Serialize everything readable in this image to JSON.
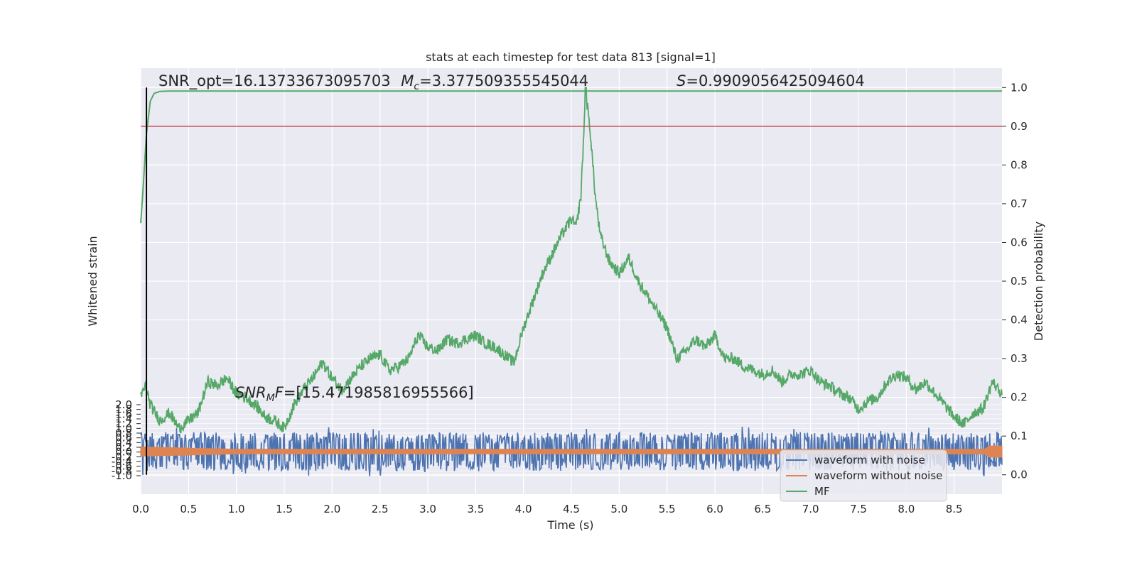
{
  "chart_data": {
    "type": "line",
    "title": "stats at each timestep for test data 813 [signal=1]",
    "xlabel": "Time (s)",
    "ylabel_left": "Whitened strain",
    "ylabel_right": "Detection probability",
    "xlim": [
      0.0,
      9.0
    ],
    "ylim_right": [
      -0.05,
      1.05
    ],
    "x_ticks": [
      "0.0",
      "0.5",
      "1.0",
      "1.5",
      "2.0",
      "2.5",
      "3.0",
      "3.5",
      "4.0",
      "4.5",
      "5.0",
      "5.5",
      "6.0",
      "6.5",
      "7.0",
      "7.5",
      "8.0",
      "8.5"
    ],
    "y_right_ticks": [
      "0.0",
      "0.1",
      "0.2",
      "0.3",
      "0.4",
      "0.5",
      "0.6",
      "0.7",
      "0.8",
      "0.9",
      "1.0"
    ],
    "y_left_ticks": [
      "2.0",
      "1.8",
      "1.6",
      "1.4",
      "1.2",
      "1.0",
      "0.8",
      "0.6",
      "0.4",
      "0.2",
      "0.0",
      "-0.2",
      "-0.4",
      "-0.6",
      "-0.8",
      "-1.0"
    ],
    "grid": true,
    "legend_position": "lower-right",
    "annotations": {
      "snr_opt": "SNR_opt=16.13733673095703",
      "mc_label": "M",
      "mc_sub": "c",
      "mc_value": "=3.377509355545044",
      "s_label": "S",
      "s_value": "=0.9909056425094604",
      "snr_mf_label": "SNR",
      "snr_mf_sub": "M",
      "snr_mf_tail": "F",
      "snr_mf_value": "=[15.471985816955566]"
    },
    "threshold": {
      "value": 0.9,
      "color": "#c44e52"
    },
    "vertical_marker_x": 0.06,
    "series": [
      {
        "name": "waveform with noise",
        "color": "#4c72b0",
        "kind": "noise",
        "amplitude_prob": 0.05
      },
      {
        "name": "waveform without noise",
        "color": "#dd8452",
        "kind": "signal",
        "amplitude_prob": 0.012
      },
      {
        "name": "MF",
        "color": "#55a868",
        "kind": "mf",
        "x": [
          0.0,
          0.02,
          0.06,
          0.1,
          0.14,
          0.2,
          0.3,
          9.0
        ],
        "y": [
          0.65,
          0.72,
          0.88,
          0.965,
          0.985,
          0.99,
          0.991,
          0.991
        ]
      },
      {
        "name": "",
        "color": "#55a868",
        "kind": "prob",
        "x": [
          0.0,
          0.05,
          0.1,
          0.2,
          0.3,
          0.4,
          0.5,
          0.6,
          0.7,
          0.8,
          0.9,
          1.0,
          1.1,
          1.2,
          1.3,
          1.4,
          1.5,
          1.6,
          1.7,
          1.8,
          1.9,
          2.0,
          2.1,
          2.2,
          2.3,
          2.4,
          2.5,
          2.6,
          2.7,
          2.8,
          2.9,
          3.0,
          3.1,
          3.2,
          3.3,
          3.4,
          3.5,
          3.6,
          3.7,
          3.8,
          3.9,
          4.0,
          4.1,
          4.2,
          4.3,
          4.4,
          4.5,
          4.55,
          4.6,
          4.65,
          4.7,
          4.75,
          4.8,
          4.9,
          5.0,
          5.1,
          5.2,
          5.3,
          5.4,
          5.5,
          5.6,
          5.7,
          5.8,
          5.9,
          6.0,
          6.1,
          6.2,
          6.3,
          6.4,
          6.5,
          6.6,
          6.7,
          6.8,
          6.9,
          7.0,
          7.1,
          7.2,
          7.3,
          7.4,
          7.5,
          7.6,
          7.7,
          7.8,
          7.9,
          8.0,
          8.1,
          8.2,
          8.3,
          8.4,
          8.5,
          8.6,
          8.7,
          8.8,
          8.9,
          9.0
        ],
        "y": [
          0.2,
          0.23,
          0.18,
          0.14,
          0.16,
          0.12,
          0.14,
          0.16,
          0.24,
          0.23,
          0.25,
          0.21,
          0.2,
          0.18,
          0.15,
          0.14,
          0.12,
          0.18,
          0.22,
          0.25,
          0.29,
          0.25,
          0.22,
          0.25,
          0.28,
          0.3,
          0.31,
          0.27,
          0.28,
          0.3,
          0.36,
          0.33,
          0.32,
          0.35,
          0.34,
          0.35,
          0.36,
          0.34,
          0.33,
          0.31,
          0.29,
          0.38,
          0.45,
          0.52,
          0.57,
          0.62,
          0.66,
          0.64,
          0.72,
          0.99,
          0.88,
          0.72,
          0.62,
          0.55,
          0.52,
          0.56,
          0.5,
          0.46,
          0.42,
          0.38,
          0.3,
          0.32,
          0.35,
          0.33,
          0.36,
          0.3,
          0.3,
          0.28,
          0.27,
          0.26,
          0.27,
          0.24,
          0.26,
          0.26,
          0.27,
          0.24,
          0.23,
          0.21,
          0.2,
          0.17,
          0.19,
          0.2,
          0.24,
          0.26,
          0.25,
          0.22,
          0.24,
          0.21,
          0.18,
          0.15,
          0.13,
          0.16,
          0.17,
          0.24,
          0.21
        ]
      }
    ]
  }
}
